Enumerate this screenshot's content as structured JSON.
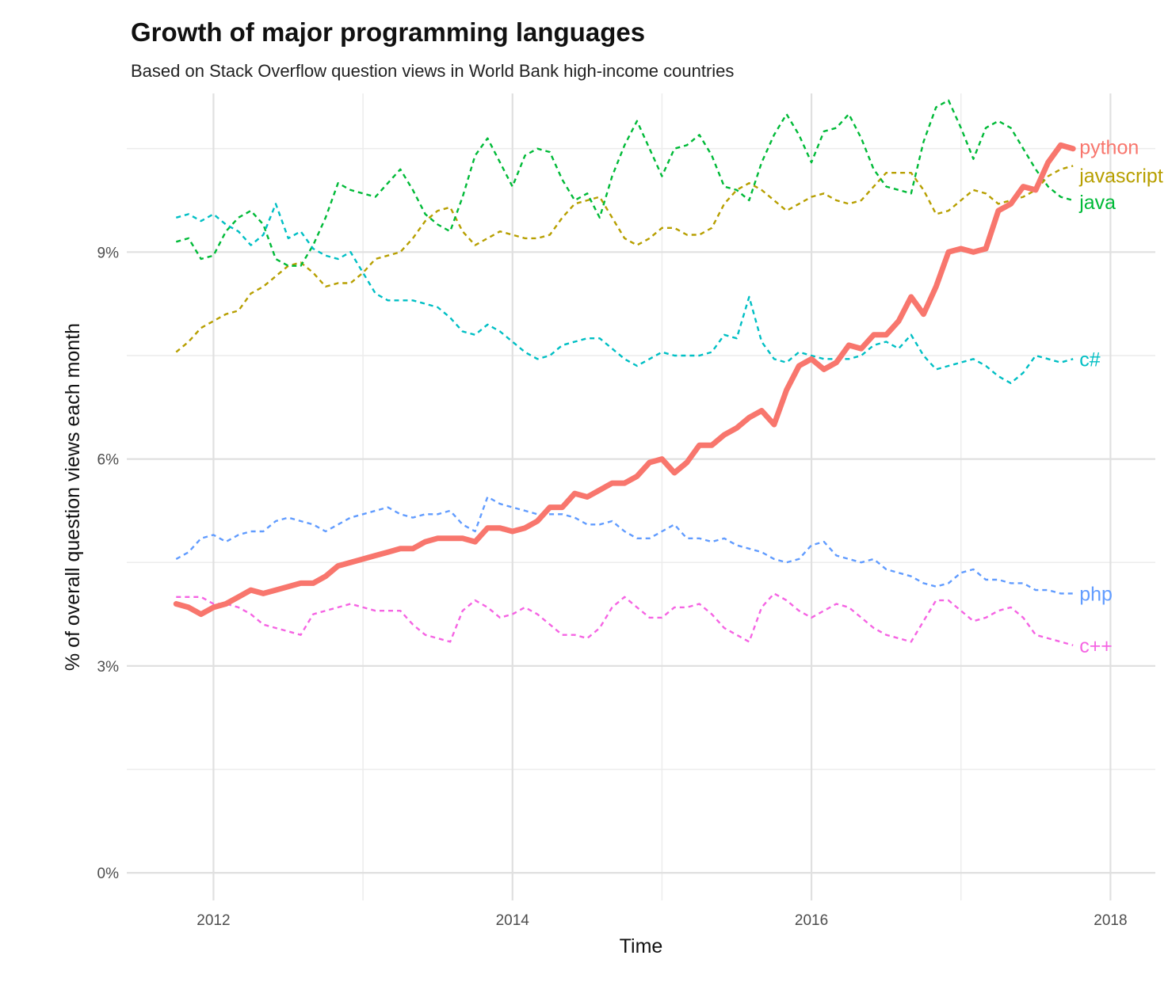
{
  "chart_data": {
    "type": "line",
    "title": "Growth of major programming languages",
    "subtitle": "Based on Stack Overflow question views in World Bank high-income countries",
    "xlabel": "Time",
    "ylabel": "% of overall question views each month",
    "xlim": [
      2011.42,
      2018.3
    ],
    "ylim": [
      -0.4,
      11.3
    ],
    "x_ticks": [
      {
        "value": 2012,
        "label": "2012"
      },
      {
        "value": 2014,
        "label": "2014"
      },
      {
        "value": 2016,
        "label": "2016"
      },
      {
        "value": 2018,
        "label": "2018"
      }
    ],
    "y_ticks": [
      {
        "value": 0,
        "label": "0%"
      },
      {
        "value": 3,
        "label": "3%"
      },
      {
        "value": 6,
        "label": "6%"
      },
      {
        "value": 9,
        "label": "9%"
      }
    ],
    "grid": true,
    "x_start": 2011.75,
    "x_step": 0.08333,
    "series": [
      {
        "name": "python",
        "label": "python",
        "color": "#F8766D",
        "style": "solid",
        "values": [
          3.9,
          3.85,
          3.75,
          3.85,
          3.9,
          4.0,
          4.1,
          4.05,
          4.1,
          4.15,
          4.2,
          4.2,
          4.3,
          4.45,
          4.5,
          4.55,
          4.6,
          4.65,
          4.7,
          4.7,
          4.8,
          4.85,
          4.85,
          4.85,
          4.8,
          5.0,
          5.0,
          4.95,
          5.0,
          5.1,
          5.3,
          5.3,
          5.5,
          5.45,
          5.55,
          5.65,
          5.65,
          5.75,
          5.95,
          6.0,
          5.8,
          5.95,
          6.2,
          6.2,
          6.35,
          6.45,
          6.6,
          6.7,
          6.5,
          7.0,
          7.35,
          7.45,
          7.3,
          7.4,
          7.65,
          7.6,
          7.8,
          7.8,
          8.0,
          8.35,
          8.1,
          8.5,
          9.0,
          9.05,
          9.0,
          9.05,
          9.6,
          9.7,
          9.95,
          9.9,
          10.3,
          10.55,
          10.5
        ]
      },
      {
        "name": "javascript",
        "label": "javascript",
        "color": "#B79F00",
        "style": "dashed",
        "values": [
          7.55,
          7.7,
          7.9,
          8.0,
          8.1,
          8.15,
          8.4,
          8.5,
          8.65,
          8.8,
          8.85,
          8.7,
          8.5,
          8.55,
          8.55,
          8.7,
          8.9,
          8.95,
          9.0,
          9.2,
          9.45,
          9.6,
          9.65,
          9.3,
          9.1,
          9.2,
          9.3,
          9.25,
          9.2,
          9.2,
          9.25,
          9.5,
          9.7,
          9.75,
          9.8,
          9.5,
          9.2,
          9.1,
          9.2,
          9.35,
          9.35,
          9.25,
          9.25,
          9.35,
          9.7,
          9.9,
          10.0,
          9.9,
          9.75,
          9.6,
          9.7,
          9.8,
          9.85,
          9.75,
          9.7,
          9.75,
          9.95,
          10.15,
          10.15,
          10.15,
          9.9,
          9.55,
          9.6,
          9.75,
          9.9,
          9.85,
          9.7,
          9.75,
          9.8,
          9.9,
          10.1,
          10.2,
          10.25
        ]
      },
      {
        "name": "java",
        "label": "java",
        "color": "#00BA38",
        "style": "dashed",
        "values": [
          9.15,
          9.2,
          8.9,
          8.95,
          9.3,
          9.5,
          9.6,
          9.4,
          8.9,
          8.8,
          8.8,
          9.1,
          9.5,
          10.0,
          9.9,
          9.85,
          9.8,
          10.0,
          10.2,
          9.9,
          9.55,
          9.4,
          9.3,
          9.8,
          10.4,
          10.65,
          10.3,
          9.95,
          10.4,
          10.5,
          10.45,
          10.05,
          9.75,
          9.85,
          9.5,
          10.1,
          10.55,
          10.9,
          10.5,
          10.1,
          10.5,
          10.55,
          10.7,
          10.4,
          9.95,
          9.9,
          9.75,
          10.3,
          10.7,
          11.0,
          10.7,
          10.3,
          10.75,
          10.8,
          11.0,
          10.65,
          10.2,
          9.95,
          9.9,
          9.85,
          10.6,
          11.1,
          11.2,
          10.8,
          10.35,
          10.8,
          10.9,
          10.8,
          10.5,
          10.2,
          9.95,
          9.8,
          9.75
        ]
      },
      {
        "name": "c#",
        "label": "c#",
        "color": "#00BFC4",
        "style": "dashed",
        "values": [
          9.5,
          9.55,
          9.45,
          9.55,
          9.4,
          9.3,
          9.1,
          9.25,
          9.7,
          9.2,
          9.3,
          9.05,
          8.95,
          8.9,
          9.0,
          8.7,
          8.4,
          8.3,
          8.3,
          8.3,
          8.25,
          8.2,
          8.05,
          7.85,
          7.8,
          7.95,
          7.85,
          7.7,
          7.55,
          7.45,
          7.5,
          7.65,
          7.7,
          7.75,
          7.75,
          7.6,
          7.45,
          7.35,
          7.45,
          7.55,
          7.5,
          7.5,
          7.5,
          7.55,
          7.8,
          7.75,
          8.35,
          7.7,
          7.45,
          7.4,
          7.55,
          7.5,
          7.45,
          7.45,
          7.45,
          7.5,
          7.65,
          7.7,
          7.6,
          7.8,
          7.5,
          7.3,
          7.35,
          7.4,
          7.45,
          7.35,
          7.2,
          7.1,
          7.25,
          7.5,
          7.45,
          7.4,
          7.45
        ]
      },
      {
        "name": "php",
        "label": "php",
        "color": "#619CFF",
        "style": "dashed",
        "values": [
          4.55,
          4.65,
          4.85,
          4.9,
          4.8,
          4.9,
          4.95,
          4.95,
          5.1,
          5.15,
          5.1,
          5.05,
          4.95,
          5.05,
          5.15,
          5.2,
          5.25,
          5.3,
          5.2,
          5.15,
          5.2,
          5.2,
          5.25,
          5.05,
          4.95,
          5.45,
          5.35,
          5.3,
          5.25,
          5.2,
          5.2,
          5.2,
          5.15,
          5.05,
          5.05,
          5.1,
          4.95,
          4.85,
          4.85,
          4.95,
          5.05,
          4.85,
          4.85,
          4.8,
          4.85,
          4.75,
          4.7,
          4.65,
          4.55,
          4.5,
          4.55,
          4.75,
          4.8,
          4.6,
          4.55,
          4.5,
          4.55,
          4.4,
          4.35,
          4.3,
          4.2,
          4.15,
          4.2,
          4.35,
          4.4,
          4.25,
          4.25,
          4.2,
          4.2,
          4.1,
          4.1,
          4.05,
          4.05
        ]
      },
      {
        "name": "c++",
        "label": "c++",
        "color": "#F564E3",
        "style": "dashed",
        "values": [
          4.0,
          4.0,
          4.0,
          3.9,
          3.9,
          3.85,
          3.75,
          3.6,
          3.55,
          3.5,
          3.45,
          3.75,
          3.8,
          3.85,
          3.9,
          3.85,
          3.8,
          3.8,
          3.8,
          3.6,
          3.45,
          3.4,
          3.35,
          3.8,
          3.95,
          3.85,
          3.7,
          3.75,
          3.85,
          3.75,
          3.6,
          3.45,
          3.45,
          3.4,
          3.55,
          3.85,
          4.0,
          3.85,
          3.7,
          3.7,
          3.85,
          3.85,
          3.9,
          3.75,
          3.55,
          3.45,
          3.35,
          3.85,
          4.05,
          3.95,
          3.8,
          3.7,
          3.8,
          3.9,
          3.85,
          3.7,
          3.55,
          3.45,
          3.4,
          3.35,
          3.65,
          3.95,
          3.95,
          3.8,
          3.65,
          3.7,
          3.8,
          3.85,
          3.7,
          3.45,
          3.4,
          3.35,
          3.3
        ]
      }
    ]
  }
}
